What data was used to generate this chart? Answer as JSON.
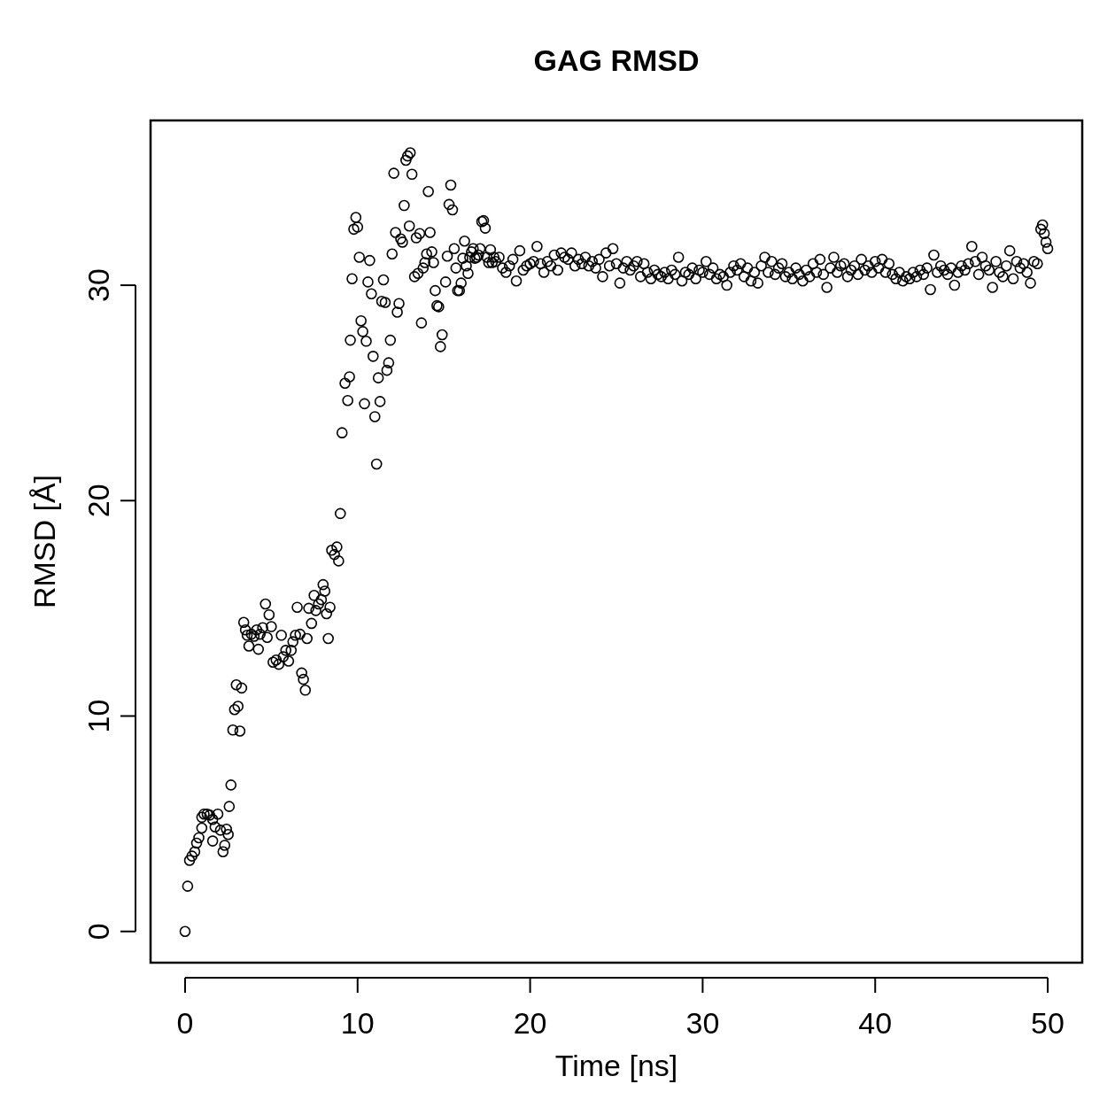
{
  "chart_data": {
    "type": "scatter",
    "title": "GAG RMSD",
    "xlabel": "Time [ns]",
    "ylabel": "RMSD [Å]",
    "xlim": [
      -2,
      52
    ],
    "ylim": [
      -1.45,
      37.65
    ],
    "xticks": [
      0,
      10,
      20,
      30,
      40,
      50
    ],
    "yticks": [
      0,
      10,
      20,
      30
    ],
    "marker": "circle",
    "grid": false,
    "series": [
      {
        "color": "#000000",
        "x": [
          0,
          0.15,
          0.26,
          0.4,
          0.56,
          0.67,
          0.8,
          0.97,
          0.97,
          1.1,
          1.28,
          1.43,
          1.6,
          1.6,
          1.74,
          1.9,
          2.05,
          2.2,
          2.3,
          2.4,
          2.5,
          2.56,
          2.66,
          2.77,
          2.87,
          2.97,
          3.07,
          3.18,
          3.28,
          3.4,
          3.5,
          3.6,
          3.7,
          3.84,
          4.0,
          4.15,
          4.25,
          4.35,
          4.5,
          4.66,
          4.76,
          4.87,
          5.0,
          5.1,
          5.28,
          5.43,
          5.58,
          5.69,
          5.84,
          6.0,
          6.15,
          6.25,
          6.4,
          6.5,
          6.66,
          6.76,
          6.86,
          6.97,
          7.07,
          7.17,
          7.33,
          7.48,
          7.58,
          7.74,
          7.9,
          8.0,
          8.1,
          8.2,
          8.3,
          8.4,
          8.5,
          8.66,
          8.8,
          8.9,
          9.0,
          9.1,
          9.27,
          9.43,
          9.53,
          9.58,
          9.68,
          9.78,
          9.9,
          10.0,
          10.1,
          10.2,
          10.3,
          10.4,
          10.5,
          10.6,
          10.7,
          10.8,
          10.9,
          11.0,
          11.1,
          11.2,
          11.3,
          11.4,
          11.5,
          11.6,
          11.7,
          11.8,
          11.9,
          12.0,
          12.1,
          12.2,
          12.3,
          12.4,
          12.5,
          12.6,
          12.7,
          12.8,
          12.9,
          13.0,
          13.05,
          13.15,
          13.3,
          13.4,
          13.5,
          13.6,
          13.7,
          13.8,
          13.9,
          14.0,
          14.1,
          14.2,
          14.3,
          14.4,
          14.5,
          14.6,
          14.7,
          14.8,
          14.9,
          15.1,
          15.2,
          15.3,
          15.4,
          15.5,
          15.6,
          15.7,
          15.8,
          15.9,
          16.0,
          16.1,
          16.2,
          16.3,
          16.4,
          16.5,
          16.6,
          16.7,
          16.8,
          16.9,
          17.0,
          17.1,
          17.2,
          17.3,
          17.4,
          17.5,
          17.6,
          17.7,
          17.8,
          17.9,
          18.0,
          18.2,
          18.4,
          18.6,
          18.8,
          19.0,
          19.2,
          19.4,
          19.6,
          19.8,
          20.0,
          20.2,
          20.4,
          20.6,
          20.8,
          21.0,
          21.2,
          21.4,
          21.6,
          21.8,
          22.0,
          22.2,
          22.4,
          22.6,
          22.8,
          23.0,
          23.2,
          23.4,
          23.6,
          23.8,
          24.0,
          24.2,
          24.4,
          24.6,
          24.8,
          25.0,
          25.2,
          25.4,
          25.6,
          25.8,
          26.0,
          26.2,
          26.4,
          26.6,
          26.8,
          27.0,
          27.2,
          27.4,
          27.6,
          27.8,
          28.0,
          28.2,
          28.4,
          28.6,
          28.8,
          29.0,
          29.2,
          29.4,
          29.6,
          29.8,
          30.0,
          30.2,
          30.4,
          30.6,
          30.8,
          31.0,
          31.2,
          31.4,
          31.6,
          31.8,
          32.0,
          32.2,
          32.4,
          32.6,
          32.8,
          33.0,
          33.2,
          33.4,
          33.6,
          33.8,
          34.0,
          34.2,
          34.4,
          34.6,
          34.8,
          35.0,
          35.2,
          35.4,
          35.6,
          35.8,
          36.0,
          36.2,
          36.4,
          36.6,
          36.8,
          37.0,
          37.2,
          37.4,
          37.6,
          37.8,
          38.0,
          38.2,
          38.4,
          38.6,
          38.8,
          39.0,
          39.2,
          39.4,
          39.6,
          39.8,
          40.0,
          40.2,
          40.4,
          40.6,
          40.8,
          41.0,
          41.2,
          41.4,
          41.6,
          41.8,
          42.0,
          42.2,
          42.4,
          42.6,
          42.8,
          43.0,
          43.2,
          43.4,
          43.6,
          43.8,
          44.0,
          44.2,
          44.4,
          44.6,
          44.8,
          45.0,
          45.2,
          45.4,
          45.6,
          45.8,
          46.0,
          46.2,
          46.4,
          46.6,
          46.8,
          47.0,
          47.2,
          47.4,
          47.6,
          47.8,
          48.0,
          48.2,
          48.4,
          48.6,
          48.8,
          49.0,
          49.2,
          49.4,
          49.6,
          49.7,
          49.8,
          49.9,
          50.0
        ],
        "values": [
          0,
          2.1,
          3.3,
          3.5,
          3.7,
          4.1,
          4.35,
          4.8,
          5.3,
          5.45,
          5.45,
          5.4,
          5.2,
          4.2,
          4.85,
          5.45,
          4.7,
          3.7,
          4.0,
          4.75,
          4.5,
          5.8,
          6.8,
          9.35,
          10.3,
          11.45,
          10.45,
          9.3,
          11.3,
          14.35,
          14.0,
          13.75,
          13.25,
          13.8,
          13.7,
          14.0,
          13.1,
          13.8,
          14.1,
          15.2,
          13.65,
          14.7,
          14.15,
          12.5,
          12.6,
          12.4,
          13.75,
          12.75,
          13.05,
          12.55,
          13.05,
          13.45,
          13.75,
          15.05,
          13.8,
          12.0,
          11.7,
          11.2,
          13.6,
          15.0,
          14.3,
          15.6,
          14.9,
          15.2,
          15.4,
          16.1,
          15.8,
          14.75,
          13.6,
          15.05,
          17.7,
          17.5,
          17.85,
          17.2,
          19.4,
          23.15,
          25.45,
          24.65,
          25.75,
          27.45,
          30.3,
          32.6,
          33.15,
          32.7,
          31.3,
          28.35,
          27.85,
          24.5,
          27.4,
          30.15,
          31.15,
          29.6,
          26.7,
          23.9,
          21.7,
          25.7,
          24.6,
          29.25,
          30.25,
          29.2,
          26.05,
          26.4,
          27.45,
          31.45,
          35.2,
          32.45,
          28.75,
          29.15,
          32.15,
          32.0,
          33.7,
          35.8,
          36.0,
          32.75,
          36.15,
          35.15,
          30.4,
          32.2,
          30.55,
          32.4,
          28.25,
          30.8,
          31.05,
          31.45,
          34.35,
          32.45,
          31.55,
          31.05,
          29.75,
          29.05,
          29.0,
          27.15,
          27.7,
          30.15,
          31.35,
          33.75,
          34.65,
          33.5,
          31.7,
          30.8,
          29.75,
          29.75,
          30.1,
          31.25,
          32.05,
          30.9,
          30.55,
          31.3,
          31.55,
          31.7,
          31.25,
          31.3,
          31.4,
          31.7,
          32.95,
          33.0,
          32.65,
          31.3,
          31.05,
          31.65,
          31.05,
          31.3,
          31.1,
          31.3,
          30.8,
          30.6,
          30.9,
          31.2,
          30.2,
          31.6,
          30.7,
          30.9,
          31.0,
          31.1,
          31.8,
          31.0,
          30.6,
          31.1,
          30.9,
          31.4,
          30.7,
          31.5,
          31.3,
          31.2,
          31.5,
          30.9,
          31.2,
          31.0,
          31.3,
          30.9,
          31.1,
          30.8,
          31.2,
          30.4,
          31.5,
          30.9,
          31.7,
          31.0,
          30.1,
          30.8,
          31.1,
          30.7,
          30.9,
          31.1,
          30.4,
          31.0,
          30.6,
          30.3,
          30.7,
          30.5,
          30.4,
          30.6,
          30.3,
          30.7,
          30.5,
          31.3,
          30.2,
          30.6,
          30.5,
          30.8,
          30.3,
          30.7,
          30.6,
          31.1,
          30.5,
          30.8,
          30.3,
          30.5,
          30.4,
          30.0,
          30.6,
          30.9,
          30.7,
          31.0,
          30.4,
          30.8,
          30.2,
          30.6,
          30.1,
          30.9,
          31.3,
          30.6,
          31.1,
          30.5,
          30.8,
          31.0,
          30.4,
          30.6,
          30.3,
          30.8,
          30.5,
          30.2,
          30.7,
          30.4,
          31.0,
          30.6,
          31.2,
          30.5,
          29.9,
          30.8,
          31.3,
          30.6,
          30.9,
          31.0,
          30.4,
          30.7,
          30.9,
          30.5,
          31.2,
          30.7,
          30.9,
          30.6,
          31.1,
          30.8,
          31.2,
          30.6,
          31.0,
          30.5,
          30.3,
          30.6,
          30.2,
          30.4,
          30.3,
          30.6,
          30.4,
          30.7,
          30.5,
          30.8,
          29.8,
          31.4,
          30.6,
          30.9,
          30.7,
          30.5,
          30.8,
          30.0,
          30.6,
          30.9,
          30.7,
          31.0,
          31.8,
          31.1,
          30.5,
          31.3,
          30.9,
          30.7,
          29.9,
          31.1,
          30.6,
          30.4,
          30.9,
          31.6,
          30.3,
          31.1,
          30.8,
          31.0,
          30.6,
          30.1,
          31.1,
          31.0,
          32.6,
          32.8,
          32.4,
          32.0,
          31.7
        ]
      }
    ]
  }
}
